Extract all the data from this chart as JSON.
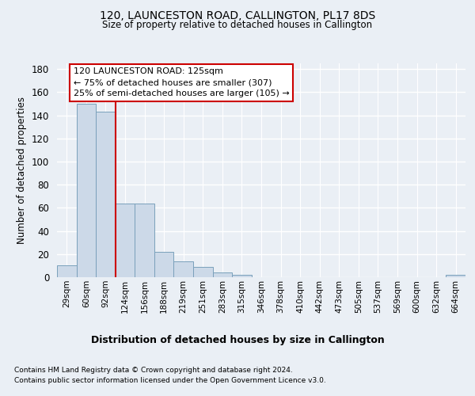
{
  "title": "120, LAUNCESTON ROAD, CALLINGTON, PL17 8DS",
  "subtitle": "Size of property relative to detached houses in Callington",
  "xlabel": "Distribution of detached houses by size in Callington",
  "ylabel": "Number of detached properties",
  "bin_labels": [
    "29sqm",
    "60sqm",
    "92sqm",
    "124sqm",
    "156sqm",
    "188sqm",
    "219sqm",
    "251sqm",
    "283sqm",
    "315sqm",
    "346sqm",
    "378sqm",
    "410sqm",
    "442sqm",
    "473sqm",
    "505sqm",
    "537sqm",
    "569sqm",
    "600sqm",
    "632sqm",
    "664sqm"
  ],
  "bar_values": [
    10,
    150,
    143,
    64,
    64,
    22,
    14,
    9,
    4,
    2,
    0,
    0,
    0,
    0,
    0,
    0,
    0,
    0,
    0,
    0,
    2
  ],
  "bar_color": "#ccd9e8",
  "bar_edge_color": "#7aa0bb",
  "ylim": [
    0,
    185
  ],
  "yticks": [
    0,
    20,
    40,
    60,
    80,
    100,
    120,
    140,
    160,
    180
  ],
  "annotation_line1": "120 LAUNCESTON ROAD: 125sqm",
  "annotation_line2": "← 75% of detached houses are smaller (307)",
  "annotation_line3": "25% of semi-detached houses are larger (105) →",
  "annotation_box_color": "#ffffff",
  "annotation_box_edge": "#cc0000",
  "ref_line_color": "#cc0000",
  "footnote1": "Contains HM Land Registry data © Crown copyright and database right 2024.",
  "footnote2": "Contains public sector information licensed under the Open Government Licence v3.0.",
  "background_color": "#eaeff5",
  "plot_bg_color": "#eaeff5",
  "grid_color": "#ffffff"
}
